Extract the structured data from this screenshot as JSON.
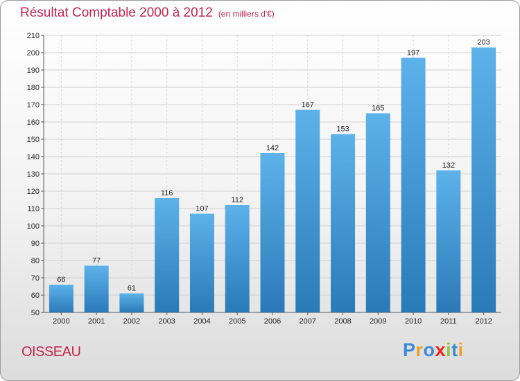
{
  "page": {
    "title": "Résultat Comptable 2000 à 2012",
    "subtitle": "(en milliers d'€)",
    "commune": "OISSEAU",
    "brand": "Proxiti",
    "brand_letters": [
      {
        "char": "P",
        "color": "#3a8ad8"
      },
      {
        "char": "r",
        "color": "#f0a020"
      },
      {
        "char": "o",
        "color": "#3a8ad8"
      },
      {
        "char": "x",
        "color": "#e8281e"
      },
      {
        "char": "i",
        "color": "#8cc63f"
      },
      {
        "char": "t",
        "color": "#3a8ad8"
      },
      {
        "char": "i",
        "color": "#f0a020"
      }
    ]
  },
  "chart_data": {
    "type": "bar",
    "title": "Résultat Comptable 2000 à 2012",
    "subtitle": "(en milliers d'€)",
    "xlabel": "",
    "ylabel": "",
    "categories": [
      "2000",
      "2001",
      "2002",
      "2003",
      "2004",
      "2005",
      "2006",
      "2007",
      "2008",
      "2009",
      "2010",
      "2011",
      "2012"
    ],
    "values": [
      66,
      77,
      61,
      116,
      107,
      112,
      142,
      167,
      153,
      165,
      197,
      132,
      203
    ],
    "ylim": [
      50,
      210
    ],
    "yticks": [
      50,
      60,
      70,
      80,
      90,
      100,
      110,
      120,
      130,
      140,
      150,
      160,
      170,
      180,
      190,
      200,
      210
    ],
    "grid": true,
    "bar_color_top": "#5db2ea",
    "bar_color_bottom": "#2a7ab8"
  }
}
